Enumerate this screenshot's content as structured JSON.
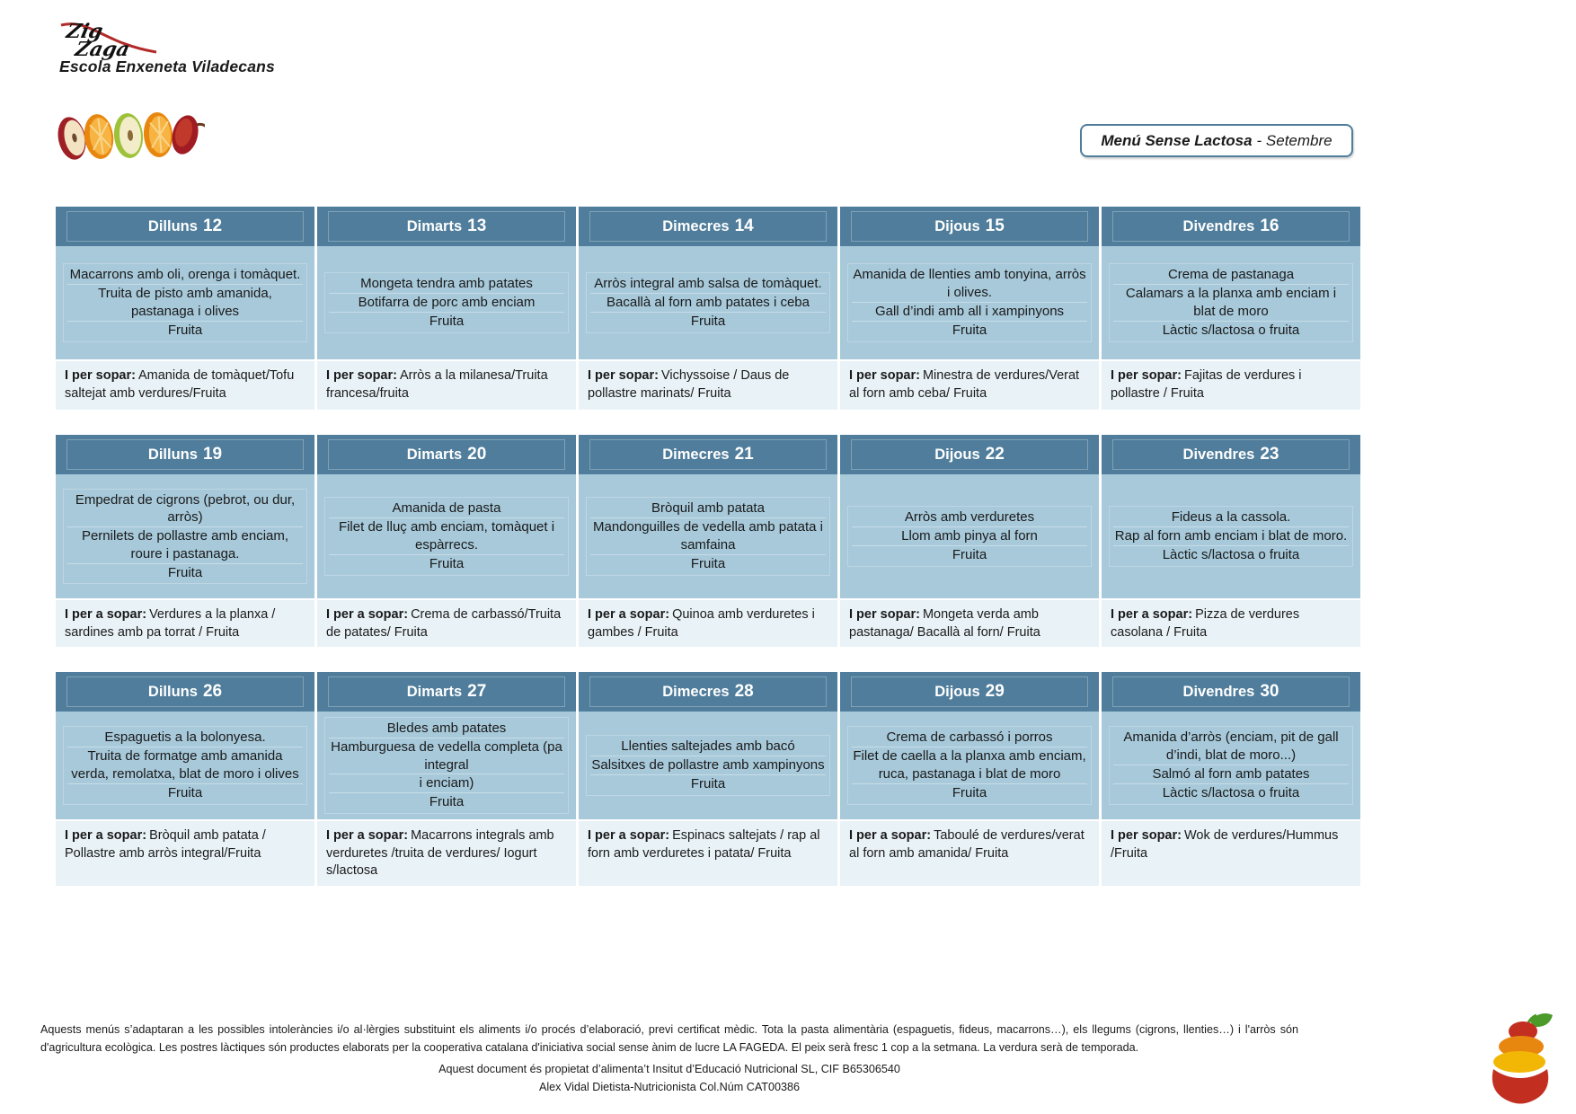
{
  "brand": {
    "logo_text_top": "Zig",
    "logo_text_bottom": "Zaga",
    "school": "Escola Enxeneta Viladecans"
  },
  "title": {
    "main": "Menú Sense Lactosa",
    "suffix": "- Setembre"
  },
  "weeks": [
    {
      "days": [
        {
          "name": "Dilluns",
          "date": "12",
          "lunch": [
            "Macarrons amb oli, orenga i tomàquet.",
            "Truita de pisto amb amanida, pastanaga i olives",
            "Fruita"
          ],
          "dinner_label": "I per sopar:",
          "dinner": "Amanida de tomàquet/Tofu saltejat amb verdures/Fruita"
        },
        {
          "name": "Dimarts",
          "date": "13",
          "lunch": [
            "Mongeta tendra amb patates",
            "Botifarra de porc amb enciam",
            "Fruita"
          ],
          "dinner_label": "I per sopar:",
          "dinner": "Arròs a la milanesa/Truita francesa/fruita"
        },
        {
          "name": "Dimecres",
          "date": "14",
          "lunch": [
            "Arròs integral amb salsa de tomàquet.",
            "Bacallà al forn amb patates i ceba",
            "Fruita"
          ],
          "dinner_label": "I per sopar:",
          "dinner": "Vichyssoise / Daus de pollastre marinats/ Fruita"
        },
        {
          "name": "Dijous",
          "date": "15",
          "lunch": [
            "Amanida de llenties amb tonyina, arròs i olives.",
            "Gall d’indi amb all i xampinyons",
            "Fruita"
          ],
          "dinner_label": "I per sopar:",
          "dinner": "Minestra de verdures/Verat al forn amb ceba/ Fruita"
        },
        {
          "name": "Divendres",
          "date": "16",
          "lunch": [
            "Crema de pastanaga",
            "Calamars a la planxa amb enciam i blat de moro",
            "Làctic s/lactosa o fruita"
          ],
          "dinner_label": "I per sopar:",
          "dinner": "Fajitas de verdures i pollastre / Fruita"
        }
      ]
    },
    {
      "days": [
        {
          "name": "Dilluns",
          "date": "19",
          "lunch": [
            "Empedrat de cigrons (pebrot, ou dur, arròs)",
            "Pernilets de pollastre amb enciam, roure i pastanaga.",
            "Fruita"
          ],
          "dinner_label": "I per a sopar:",
          "dinner": "Verdures a la planxa / sardines amb pa torrat / Fruita"
        },
        {
          "name": "Dimarts",
          "date": "20",
          "lunch": [
            "Amanida de pasta",
            "Filet de lluç amb enciam, tomàquet i espàrrecs.",
            "Fruita"
          ],
          "dinner_label": "I per a sopar:",
          "dinner": "Crema de carbassó/Truita de patates/ Fruita"
        },
        {
          "name": "Dimecres",
          "date": "21",
          "lunch": [
            "Bròquil amb patata",
            "Mandonguilles de vedella amb patata i samfaina",
            "Fruita"
          ],
          "dinner_label": "I per a sopar:",
          "dinner": "Quinoa amb verduretes i gambes / Fruita"
        },
        {
          "name": "Dijous",
          "date": "22",
          "lunch": [
            "Arròs amb verduretes",
            "Llom amb pinya al forn",
            "Fruita"
          ],
          "dinner_label": "I per sopar:",
          "dinner": "Mongeta verda amb pastanaga/ Bacallà al forn/ Fruita"
        },
        {
          "name": "Divendres",
          "date": "23",
          "lunch": [
            "Fideus a la cassola.",
            "Rap al forn amb enciam i blat de moro.",
            "Làctic s/lactosa o fruita"
          ],
          "dinner_label": "I per a sopar:",
          "dinner": "Pizza de verdures casolana / Fruita"
        }
      ]
    },
    {
      "days": [
        {
          "name": "Dilluns",
          "date": "26",
          "lunch": [
            "Espaguetis a la bolonyesa.",
            "Truita de formatge amb amanida verda, remolatxa, blat de moro i olives",
            "Fruita"
          ],
          "dinner_label": "I per a sopar:",
          "dinner": "Bròquil amb patata / Pollastre amb arròs integral/Fruita"
        },
        {
          "name": "Dimarts",
          "date": "27",
          "lunch": [
            "Bledes amb patates",
            "Hamburguesa de vedella completa (pa integral",
            "i enciam)",
            "Fruita"
          ],
          "dinner_label": "I per a sopar:",
          "dinner": "Macarrons integrals amb verduretes /truita de verdures/ Iogurt s/lactosa"
        },
        {
          "name": "Dimecres",
          "date": "28",
          "lunch": [
            "Llenties saltejades amb bacó",
            "Salsitxes de pollastre amb xampinyons",
            "Fruita"
          ],
          "dinner_label": "I per a sopar:",
          "dinner": "Espinacs saltejats / rap al forn amb verduretes i patata/ Fruita"
        },
        {
          "name": "Dijous",
          "date": "29",
          "lunch": [
            "Crema de carbassó i porros",
            "Filet de caella a la planxa amb enciam, ruca, pastanaga i blat de moro",
            "Fruita"
          ],
          "dinner_label": "I per a sopar:",
          "dinner": "Taboulé de verdures/verat al forn amb amanida/ Fruita"
        },
        {
          "name": "Divendres",
          "date": "30",
          "lunch": [
            "Amanida d’arròs (enciam, pit de gall d’indi, blat de moro...)",
            "Salmó al forn amb patates",
            "Làctic s/lactosa o fruita"
          ],
          "dinner_label": "I per sopar:",
          "dinner": "Wok de verdures/Hummus /Fruita"
        }
      ]
    }
  ],
  "footer": {
    "disclaimer": "Aquests menús s’adaptaran a les possibles intoleràncies i/o al·lèrgies substituint els aliments i/o procés d’elaboració, previ certificat mèdic. Tota la pasta alimentària (espaguetis, fideus, macarrons…), els llegums (cigrons, llenties…) i l'arròs són d'agricultura ecològica. Les postres làctiques són productes elaborats per la cooperativa catalana d'iniciativa social sense ànim de lucre LA FAGEDA. El peix serà fresc 1 cop a la setmana. La verdura serà de temporada.",
    "ownership": "Aquest document és propietat d’alimenta’t Insitut d’Educació Nutricional SL, CIF B65306540",
    "dietitian": "Alex Vidal Dietista-Nutricionista Col.Núm CAT00386"
  },
  "colors": {
    "header_bg": "#4f7d9b",
    "lunch_bg": "#a7c9da",
    "dinner_bg": "#e9f2f7",
    "accent_border": "#4f7d9b",
    "logo_swoosh": "#b22a2a"
  }
}
